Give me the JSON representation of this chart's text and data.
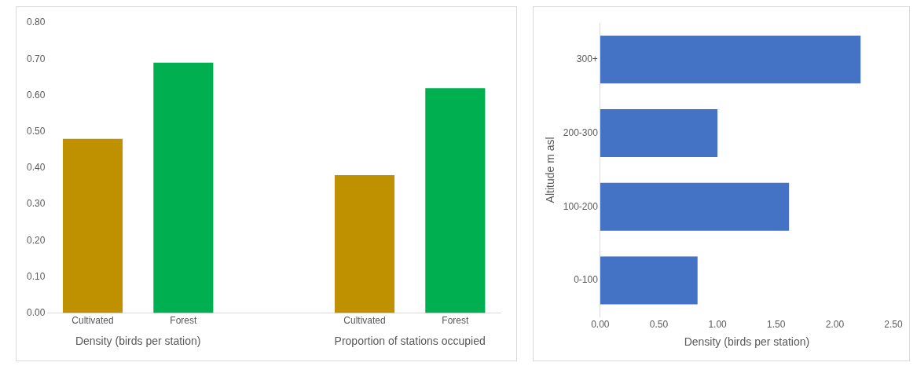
{
  "chart_data": [
    {
      "type": "bar",
      "categories": [
        "Cultivated",
        "Forest",
        null,
        "Cultivated",
        "Forest"
      ],
      "values": [
        0.48,
        0.69,
        null,
        0.38,
        0.62
      ],
      "colors": [
        "#bf9000",
        "#00b050",
        "#bf9000",
        "#bf9000",
        "#00b050"
      ],
      "ylim": [
        0,
        0.8
      ],
      "yticks": [
        {
          "value": 0,
          "label": "0.00"
        },
        {
          "value": 0.1,
          "label": "0.10"
        },
        {
          "value": 0.2,
          "label": "0.20"
        },
        {
          "value": 0.3,
          "label": "0.30"
        },
        {
          "value": 0.4,
          "label": "0.40"
        },
        {
          "value": 0.5,
          "label": "0.50"
        },
        {
          "value": 0.6,
          "label": "0.60"
        },
        {
          "value": 0.7,
          "label": "0.70"
        },
        {
          "value": 0.8,
          "label": "0.80"
        }
      ],
      "annotations": [
        "Density (birds per station)",
        "Proportion of stations occupied"
      ]
    },
    {
      "type": "bar",
      "orientation": "horizontal",
      "categories": [
        "300+",
        "200-300",
        "100-200",
        "0-100"
      ],
      "values": [
        2.22,
        1.0,
        1.61,
        0.83
      ],
      "color": "#4472c4",
      "xlim": [
        0,
        2.5
      ],
      "xticks": [
        {
          "value": 0,
          "label": "0.00"
        },
        {
          "value": 0.5,
          "label": "0.50"
        },
        {
          "value": 1,
          "label": "1.00"
        },
        {
          "value": 1.5,
          "label": "1.50"
        },
        {
          "value": 2,
          "label": "2.00"
        },
        {
          "value": 2.5,
          "label": "2.50"
        }
      ],
      "xlabel": "Density (birds per station)",
      "ylabel": "Altitude m asl"
    }
  ]
}
